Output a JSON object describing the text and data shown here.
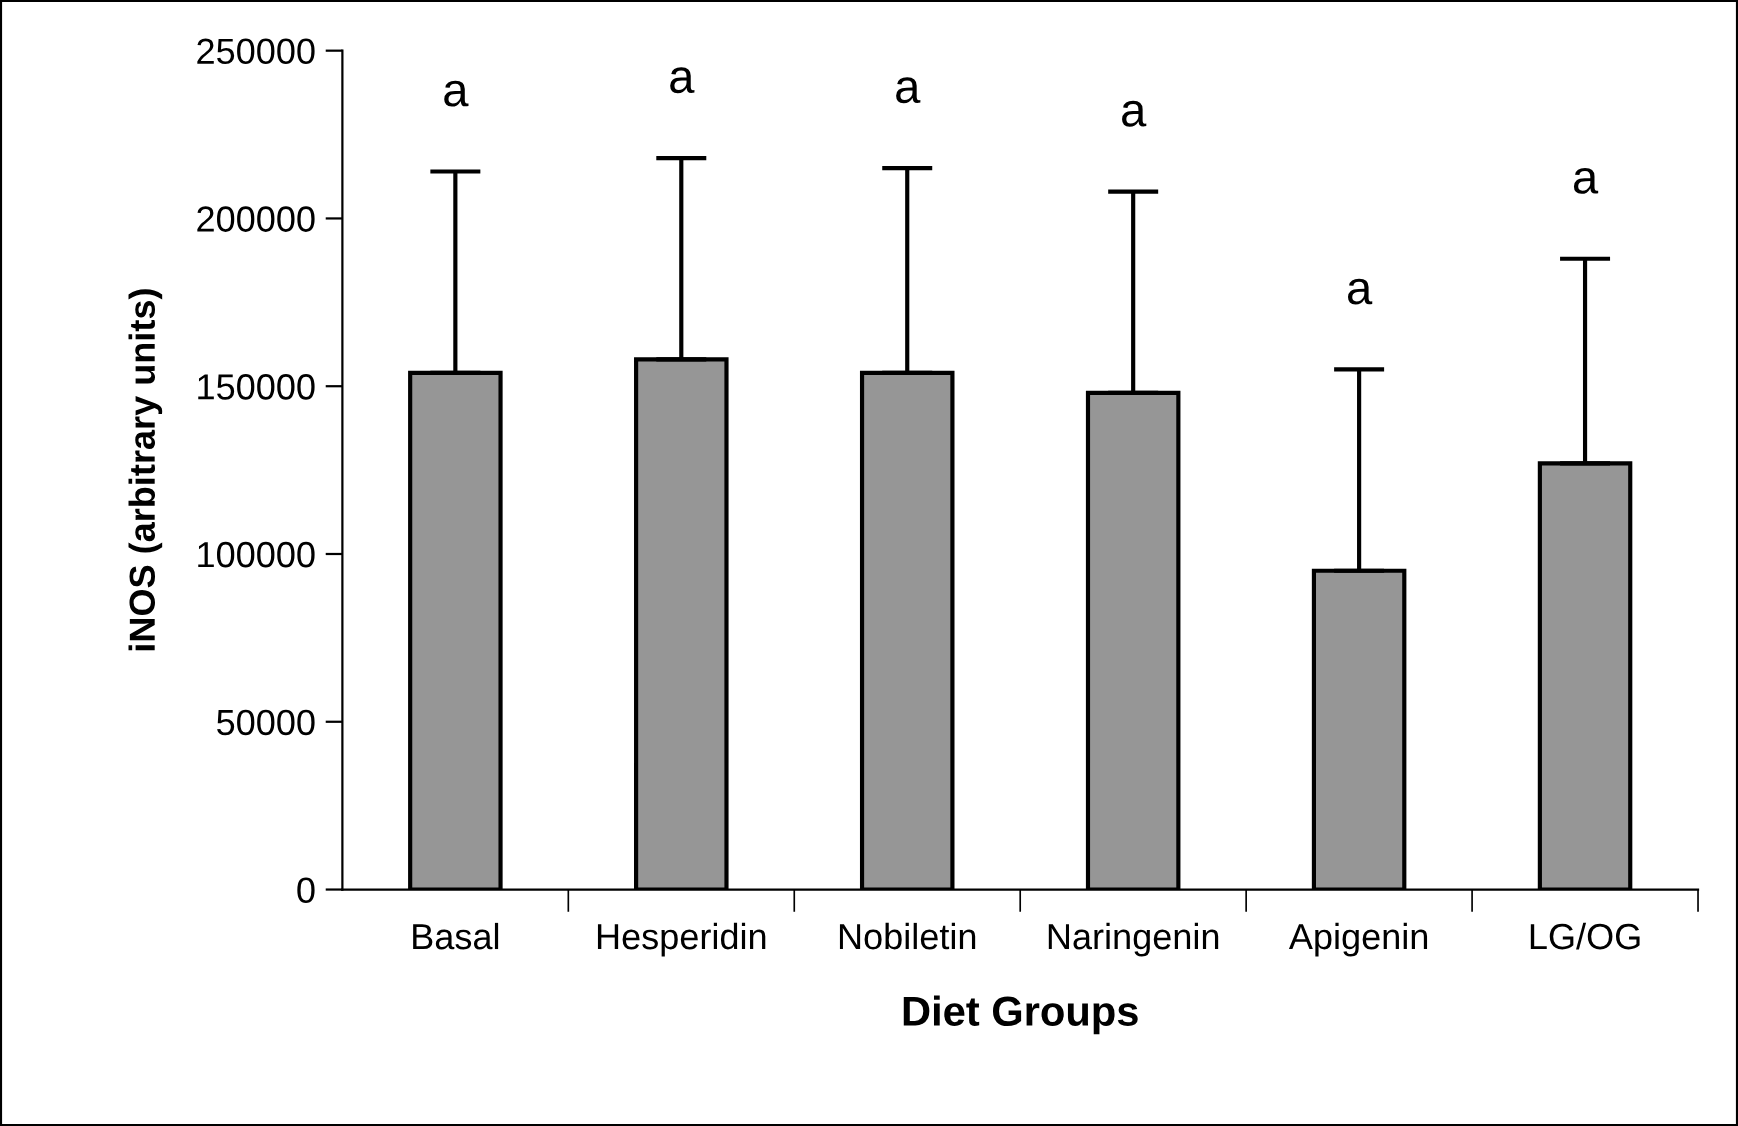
{
  "chart_data": {
    "type": "bar",
    "xlabel": "Diet Groups",
    "ylabel": "iNOS (arbitrary units)",
    "categories": [
      "Basal",
      "Hesperidin",
      "Nobiletin",
      "Naringenin",
      "Apigenin",
      "LG/OG"
    ],
    "values": [
      154000,
      158000,
      154000,
      148000,
      95000,
      127000
    ],
    "errors": [
      [
        154000,
        214000
      ],
      [
        158000,
        218000
      ],
      [
        154000,
        215000
      ],
      [
        148000,
        208000
      ],
      [
        95000,
        155000
      ],
      [
        127000,
        188000
      ]
    ],
    "color": "#969696",
    "ylim": [
      0,
      250000
    ],
    "yticks": [
      0,
      50000,
      100000,
      150000,
      200000,
      250000
    ],
    "grid": false,
    "legend": false,
    "annotations": [
      "a",
      "a",
      "a",
      "a",
      "a",
      "a"
    ]
  }
}
